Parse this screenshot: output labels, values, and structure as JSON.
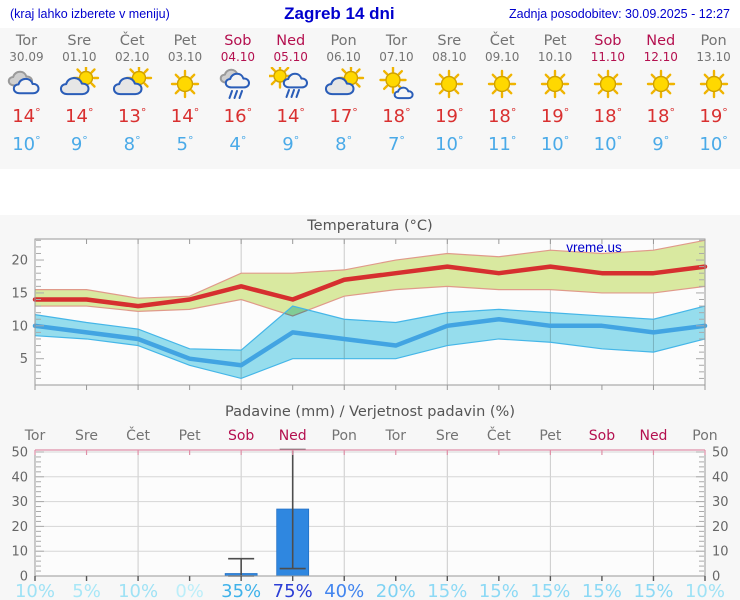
{
  "deg": "°",
  "header": {
    "hint": "(kraj lahko izberete v meniju)",
    "title": "Zagreb 14 dni",
    "updated": "Zadnja posodobitev: 30.09.2025 - 12:27"
  },
  "colors": {
    "header_blue": "#0000cd",
    "weekday_gray": "#737373",
    "weekend_red": "#b4104f",
    "tmax_red": "#d93030",
    "tmin_blue": "#4aaae8",
    "panel_bg": "#f7f7f7",
    "bar_blue": "#2f87e0",
    "grid_gray": "#cbcbcb",
    "axis_gray": "#999999",
    "pink_axis": "#e090a8",
    "text_gray": "#666666"
  },
  "days": [
    {
      "name": "Tor",
      "date": "30.09",
      "weekend": false,
      "icon": "cloudy",
      "tmax": "14",
      "tmin": "10",
      "prob": "10%",
      "prob_color": "#9fe2f5"
    },
    {
      "name": "Sre",
      "date": "01.10",
      "weekend": false,
      "icon": "partly-cloudy",
      "tmax": "14",
      "tmin": "9",
      "prob": "5%",
      "prob_color": "#a8e7f7"
    },
    {
      "name": "Čet",
      "date": "02.10",
      "weekend": false,
      "icon": "partly-cloudy",
      "tmax": "13",
      "tmin": "8",
      "prob": "10%",
      "prob_color": "#9fe2f5"
    },
    {
      "name": "Pet",
      "date": "03.10",
      "weekend": false,
      "icon": "sunny",
      "tmax": "14",
      "tmin": "5",
      "prob": "0%",
      "prob_color": "#bceef9"
    },
    {
      "name": "Sob",
      "date": "04.10",
      "weekend": true,
      "icon": "rain",
      "tmax": "16",
      "tmin": "4",
      "prob": "35%",
      "prob_color": "#3fb2ea"
    },
    {
      "name": "Ned",
      "date": "05.10",
      "weekend": true,
      "icon": "sun-rain",
      "tmax": "14",
      "tmin": "9",
      "prob": "75%",
      "prob_color": "#2b3ed6"
    },
    {
      "name": "Pon",
      "date": "06.10",
      "weekend": false,
      "icon": "partly-cloudy",
      "tmax": "17",
      "tmin": "8",
      "prob": "40%",
      "prob_color": "#4285ef"
    },
    {
      "name": "Tor",
      "date": "07.10",
      "weekend": false,
      "icon": "mostly-sunny",
      "tmax": "18",
      "tmin": "7",
      "prob": "20%",
      "prob_color": "#7ed2f3"
    },
    {
      "name": "Sre",
      "date": "08.10",
      "weekend": false,
      "icon": "sunny",
      "tmax": "19",
      "tmin": "10",
      "prob": "15%",
      "prob_color": "#8cd9f5"
    },
    {
      "name": "Čet",
      "date": "09.10",
      "weekend": false,
      "icon": "sunny",
      "tmax": "18",
      "tmin": "11",
      "prob": "15%",
      "prob_color": "#8cd9f5"
    },
    {
      "name": "Pet",
      "date": "10.10",
      "weekend": false,
      "icon": "sunny",
      "tmax": "19",
      "tmin": "10",
      "prob": "15%",
      "prob_color": "#8cd9f5"
    },
    {
      "name": "Sob",
      "date": "11.10",
      "weekend": true,
      "icon": "sunny",
      "tmax": "18",
      "tmin": "10",
      "prob": "15%",
      "prob_color": "#8cd9f5"
    },
    {
      "name": "Ned",
      "date": "12.10",
      "weekend": true,
      "icon": "sunny",
      "tmax": "18",
      "tmin": "9",
      "prob": "15%",
      "prob_color": "#8cd9f5"
    },
    {
      "name": "Pon",
      "date": "13.10",
      "weekend": false,
      "icon": "sunny",
      "tmax": "19",
      "tmin": "10",
      "prob": "10%",
      "prob_color": "#9fe2f5"
    }
  ],
  "chart_data": [
    {
      "type": "line",
      "title": "Temperatura (°C)",
      "watermark": "vreme.us",
      "categories": [
        "30.09",
        "01.10",
        "02.10",
        "03.10",
        "04.10",
        "05.10",
        "06.10",
        "07.10",
        "08.10",
        "09.10",
        "10.10",
        "11.10",
        "12.10",
        "13.10"
      ],
      "yticks": [
        5,
        10,
        15,
        20
      ],
      "ylim": [
        1,
        23.2
      ],
      "grid": true,
      "series": [
        {
          "name": "max-temperature",
          "color": "#d62f2f",
          "values": [
            14,
            14,
            13,
            14,
            16,
            14,
            17,
            18,
            19,
            18,
            19,
            18,
            18,
            19
          ]
        },
        {
          "name": "min-temperature",
          "color": "#42a4e2",
          "values": [
            10,
            9,
            8,
            5,
            4,
            9,
            8,
            7,
            10,
            11,
            10,
            10,
            9,
            10
          ]
        }
      ],
      "bands": [
        {
          "name": "max-range",
          "fill": "#d9e9a0",
          "edge": "#e09a8a",
          "blend": false,
          "upper": [
            15.5,
            15.5,
            14.2,
            14.5,
            18,
            18,
            18.5,
            20,
            21,
            20.5,
            21.5,
            21,
            21.5,
            23
          ],
          "lower": [
            13,
            13,
            12.2,
            12.5,
            14,
            11.5,
            14.5,
            15.5,
            16,
            15.5,
            15.5,
            15,
            15,
            16
          ]
        },
        {
          "name": "min-range",
          "fill": "#98e0f0",
          "edge": "#45b6e8",
          "blend": true,
          "upper": [
            11.7,
            10.5,
            9.5,
            6.5,
            6.3,
            13,
            11,
            10.5,
            12,
            12.5,
            12,
            11.5,
            11,
            13
          ],
          "lower": [
            8.5,
            8,
            7,
            4,
            2,
            5,
            5,
            5,
            7,
            8,
            7.5,
            6.5,
            6,
            8
          ]
        }
      ]
    },
    {
      "type": "bar",
      "title": "Padavine (mm) / Verjetnost padavin (%)",
      "categories": [
        "Tor",
        "Sre",
        "Čet",
        "Pet",
        "Sob",
        "Ned",
        "Pon",
        "Tor",
        "Sre",
        "Čet",
        "Pet",
        "Sob",
        "Ned",
        "Pon"
      ],
      "yticks": [
        0,
        10,
        20,
        30,
        40,
        50
      ],
      "ylim": [
        0,
        50.8
      ],
      "grid": true,
      "values": [
        0,
        0,
        0,
        0,
        1,
        27,
        0,
        0,
        0,
        0,
        0,
        0,
        0,
        0
      ],
      "whiskers": [
        null,
        null,
        null,
        null,
        {
          "low": 0,
          "high": 7
        },
        {
          "low": 3,
          "high": 51
        },
        null,
        null,
        null,
        null,
        null,
        null,
        null,
        null
      ],
      "probabilities": [
        "10%",
        "5%",
        "10%",
        "0%",
        "35%",
        "75%",
        "40%",
        "20%",
        "15%",
        "15%",
        "15%",
        "15%",
        "15%",
        "10%"
      ]
    }
  ]
}
